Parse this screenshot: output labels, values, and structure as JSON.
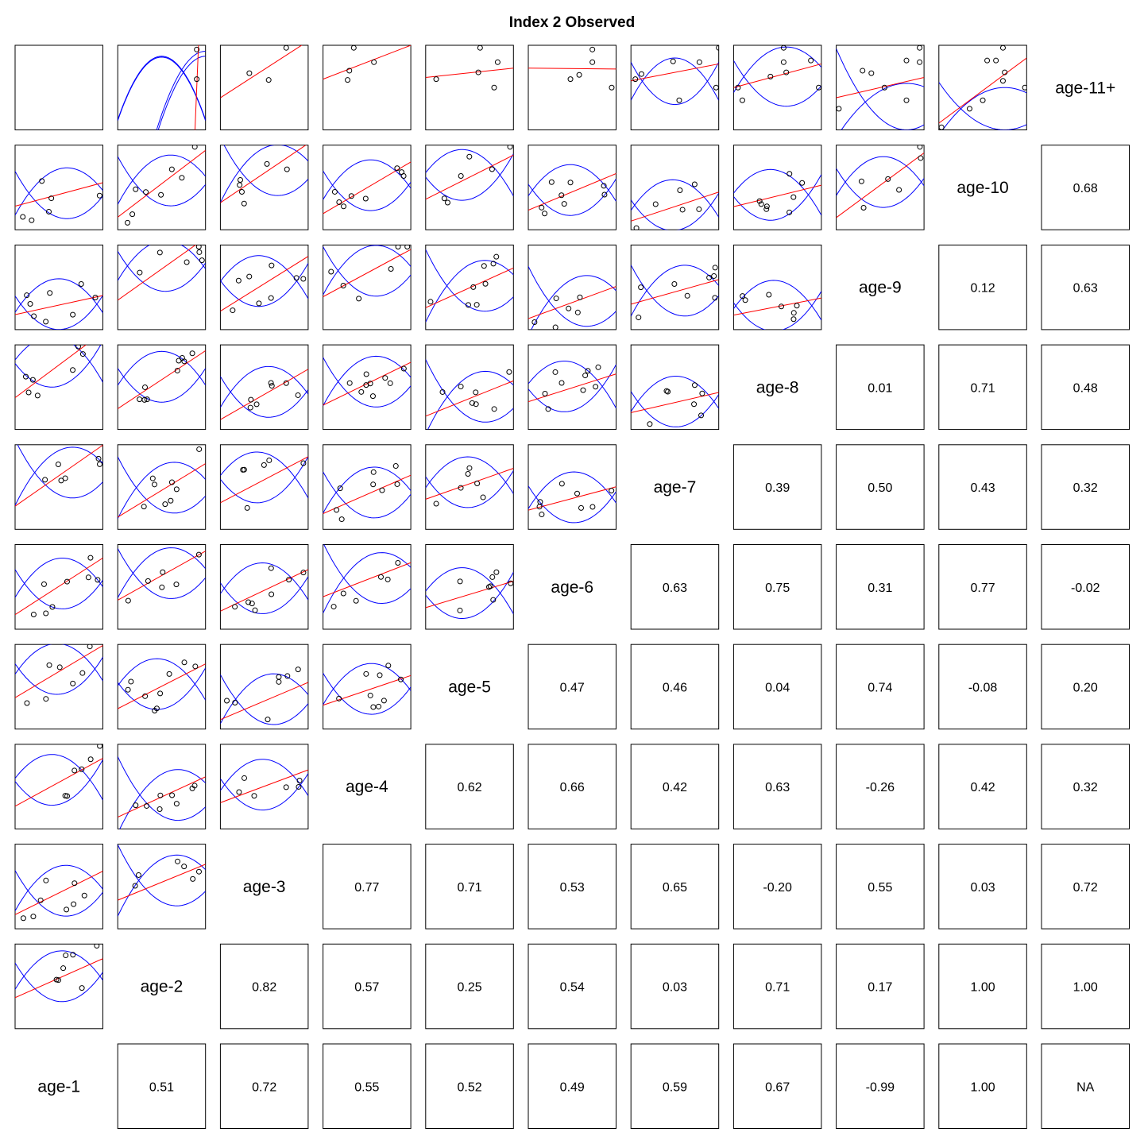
{
  "chart_data": {
    "type": "scatter",
    "title": "Index 2 Observed",
    "variables": [
      "age-11+",
      "age-10",
      "age-9",
      "age-8",
      "age-7",
      "age-6",
      "age-5",
      "age-4",
      "age-3",
      "age-2",
      "age-1"
    ],
    "upper_panel": "scatter with linear fit (red) and confidence band (blue)",
    "lower_panel": "correlation coefficient",
    "cells": [
      {
        "row": "age-11+",
        "col": "age-1",
        "kind": "scatter",
        "points": [],
        "line": null
      },
      {
        "row": "age-11+",
        "col": "age-2",
        "kind": "scatter",
        "points": [
          [
            0.9,
            0.95
          ],
          [
            0.9,
            0.6
          ]
        ],
        "line": [
          [
            0.88,
            0.0
          ],
          [
            0.92,
            1.0
          ]
        ],
        "band": [
          [
            0.5,
            0.86,
            -3.0,
            0.87,
            -3.0
          ],
          [
            1.0,
            0.87,
            -3.0,
            0.93,
            -3.0
          ]
        ]
      },
      {
        "row": "age-11+",
        "col": "age-3",
        "kind": "scatter",
        "points": [
          [
            0.33,
            0.67
          ],
          [
            0.55,
            0.59
          ],
          [
            0.75,
            0.97
          ]
        ],
        "line": [
          [
            0,
            0.38
          ],
          [
            1,
            1.05
          ]
        ],
        "band": []
      },
      {
        "row": "age-11+",
        "col": "age-4",
        "kind": "scatter",
        "points": [
          [
            0.35,
            0.97
          ],
          [
            0.3,
            0.7
          ],
          [
            0.28,
            0.59
          ],
          [
            0.58,
            0.8
          ]
        ],
        "line": [
          [
            0,
            0.6
          ],
          [
            1,
            1.0
          ]
        ],
        "band": [
          [
            0.42,
            -0.7,
            1.0,
            -0.7,
            0.0
          ]
        ]
      },
      {
        "row": "age-11+",
        "col": "age-5",
        "kind": "scatter",
        "points": [
          [
            0.62,
            0.97
          ],
          [
            0.82,
            0.8
          ],
          [
            0.6,
            0.68
          ],
          [
            0.78,
            0.5
          ],
          [
            0.12,
            0.6
          ]
        ],
        "line": [
          [
            0,
            0.62
          ],
          [
            1,
            0.73
          ]
        ],
        "band": [
          [
            0.62,
            -2.5,
            0.4,
            -2.5,
            0.0
          ]
        ]
      },
      {
        "row": "age-11+",
        "col": "age-6",
        "kind": "scatter",
        "points": [
          [
            0.73,
            0.95
          ],
          [
            0.73,
            0.8
          ],
          [
            0.48,
            0.6
          ],
          [
            0.58,
            0.65
          ],
          [
            0.95,
            0.5
          ]
        ],
        "line": [
          [
            0,
            0.73
          ],
          [
            1,
            0.72
          ]
        ],
        "band": [
          [
            0.7,
            -2.0,
            0.5,
            -2.0,
            0.0
          ]
        ]
      },
      {
        "row": "age-11+",
        "col": "age-7",
        "kind": "scatter",
        "points": [
          [
            0.12,
            0.66
          ],
          [
            0.48,
            0.81
          ],
          [
            0.78,
            0.8
          ],
          [
            0.55,
            0.35
          ],
          [
            1.0,
            0.97
          ],
          [
            0.97,
            0.5
          ],
          [
            0.05,
            0.6
          ]
        ],
        "line": [
          [
            0,
            0.58
          ],
          [
            1,
            0.78
          ]
        ],
        "band": [
          [
            0.5,
            0.3,
            2.0,
            0.85,
            -2.0
          ]
        ]
      },
      {
        "row": "age-11+",
        "col": "age-8",
        "kind": "scatter",
        "points": [
          [
            0.57,
            0.97
          ],
          [
            0.57,
            0.8
          ],
          [
            0.88,
            0.82
          ],
          [
            0.6,
            0.68
          ],
          [
            0.42,
            0.63
          ],
          [
            0.97,
            0.5
          ],
          [
            0.05,
            0.5
          ],
          [
            0.1,
            0.35
          ]
        ],
        "line": [
          [
            0,
            0.5
          ],
          [
            1,
            0.78
          ]
        ],
        "band": [
          [
            0.6,
            0.28,
            1.5,
            0.98,
            -1.5
          ]
        ]
      },
      {
        "row": "age-11+",
        "col": "age-9",
        "kind": "scatter",
        "points": [
          [
            0.3,
            0.7
          ],
          [
            0.4,
            0.67
          ],
          [
            0.8,
            0.82
          ],
          [
            0.95,
            0.8
          ],
          [
            0.95,
            0.97
          ],
          [
            0.55,
            0.5
          ],
          [
            0.8,
            0.35
          ],
          [
            0.03,
            0.25
          ]
        ],
        "line": [
          [
            0,
            0.38
          ],
          [
            1,
            0.62
          ]
        ],
        "band": [
          [
            0.8,
            0.0,
            1.5,
            0.55,
            -1.0
          ]
        ]
      },
      {
        "row": "age-11+",
        "col": "age-10",
        "kind": "scatter",
        "points": [
          [
            0.55,
            0.82
          ],
          [
            0.65,
            0.82
          ],
          [
            0.75,
            0.68
          ],
          [
            0.73,
            0.58
          ],
          [
            0.98,
            0.5
          ],
          [
            0.5,
            0.35
          ],
          [
            0.35,
            0.25
          ],
          [
            0.03,
            0.03
          ],
          [
            0.73,
            0.97
          ]
        ],
        "line": [
          [
            0,
            0.08
          ],
          [
            1,
            0.85
          ]
        ],
        "band": [
          [
            0.75,
            0.0,
            1.0,
            0.5,
            -1.0
          ]
        ]
      }
    ],
    "correlations": [
      {
        "row": "age-1",
        "col": "age-2",
        "value": "0.51"
      },
      {
        "row": "age-1",
        "col": "age-3",
        "value": "0.72"
      },
      {
        "row": "age-1",
        "col": "age-4",
        "value": "0.55"
      },
      {
        "row": "age-1",
        "col": "age-5",
        "value": "0.52"
      },
      {
        "row": "age-1",
        "col": "age-6",
        "value": "0.49"
      },
      {
        "row": "age-1",
        "col": "age-7",
        "value": "0.59"
      },
      {
        "row": "age-1",
        "col": "age-8",
        "value": "0.67"
      },
      {
        "row": "age-1",
        "col": "age-9",
        "value": "-0.99"
      },
      {
        "row": "age-1",
        "col": "age-10",
        "value": "1.00"
      },
      {
        "row": "age-1",
        "col": "age-11+",
        "value": "NA"
      },
      {
        "row": "age-2",
        "col": "age-3",
        "value": "0.82"
      },
      {
        "row": "age-2",
        "col": "age-4",
        "value": "0.57"
      },
      {
        "row": "age-2",
        "col": "age-5",
        "value": "0.25"
      },
      {
        "row": "age-2",
        "col": "age-6",
        "value": "0.54"
      },
      {
        "row": "age-2",
        "col": "age-7",
        "value": "0.03"
      },
      {
        "row": "age-2",
        "col": "age-8",
        "value": "0.71"
      },
      {
        "row": "age-2",
        "col": "age-9",
        "value": "0.17"
      },
      {
        "row": "age-2",
        "col": "age-10",
        "value": "1.00"
      },
      {
        "row": "age-2",
        "col": "age-11+",
        "value": "1.00"
      },
      {
        "row": "age-3",
        "col": "age-4",
        "value": "0.77"
      },
      {
        "row": "age-3",
        "col": "age-5",
        "value": "0.71"
      },
      {
        "row": "age-3",
        "col": "age-6",
        "value": "0.53"
      },
      {
        "row": "age-3",
        "col": "age-7",
        "value": "0.65"
      },
      {
        "row": "age-3",
        "col": "age-8",
        "value": "-0.20"
      },
      {
        "row": "age-3",
        "col": "age-9",
        "value": "0.55"
      },
      {
        "row": "age-3",
        "col": "age-10",
        "value": "0.03"
      },
      {
        "row": "age-3",
        "col": "age-11+",
        "value": "0.72"
      },
      {
        "row": "age-4",
        "col": "age-5",
        "value": "0.62"
      },
      {
        "row": "age-4",
        "col": "age-6",
        "value": "0.66"
      },
      {
        "row": "age-4",
        "col": "age-7",
        "value": "0.42"
      },
      {
        "row": "age-4",
        "col": "age-8",
        "value": "0.63"
      },
      {
        "row": "age-4",
        "col": "age-9",
        "value": "-0.26"
      },
      {
        "row": "age-4",
        "col": "age-10",
        "value": "0.42"
      },
      {
        "row": "age-4",
        "col": "age-11+",
        "value": "0.32"
      },
      {
        "row": "age-5",
        "col": "age-6",
        "value": "0.47"
      },
      {
        "row": "age-5",
        "col": "age-7",
        "value": "0.46"
      },
      {
        "row": "age-5",
        "col": "age-8",
        "value": "0.04"
      },
      {
        "row": "age-5",
        "col": "age-9",
        "value": "0.74"
      },
      {
        "row": "age-5",
        "col": "age-10",
        "value": "-0.08"
      },
      {
        "row": "age-5",
        "col": "age-11+",
        "value": "0.20"
      },
      {
        "row": "age-6",
        "col": "age-7",
        "value": "0.63"
      },
      {
        "row": "age-6",
        "col": "age-8",
        "value": "0.75"
      },
      {
        "row": "age-6",
        "col": "age-9",
        "value": "0.31"
      },
      {
        "row": "age-6",
        "col": "age-10",
        "value": "0.77"
      },
      {
        "row": "age-6",
        "col": "age-11+",
        "value": "-0.02"
      },
      {
        "row": "age-7",
        "col": "age-8",
        "value": "0.39"
      },
      {
        "row": "age-7",
        "col": "age-9",
        "value": "0.50"
      },
      {
        "row": "age-7",
        "col": "age-10",
        "value": "0.43"
      },
      {
        "row": "age-7",
        "col": "age-11+",
        "value": "0.32"
      },
      {
        "row": "age-8",
        "col": "age-9",
        "value": "0.01"
      },
      {
        "row": "age-8",
        "col": "age-10",
        "value": "0.71"
      },
      {
        "row": "age-8",
        "col": "age-11+",
        "value": "0.48"
      },
      {
        "row": "age-9",
        "col": "age-10",
        "value": "0.12"
      },
      {
        "row": "age-9",
        "col": "age-11+",
        "value": "0.63"
      },
      {
        "row": "age-10",
        "col": "age-11+",
        "value": "0.68"
      }
    ],
    "colors": {
      "fit_line": "#ff0000",
      "confidence_band": "#0000ff",
      "points": "#000000",
      "frame": "#000000"
    }
  }
}
